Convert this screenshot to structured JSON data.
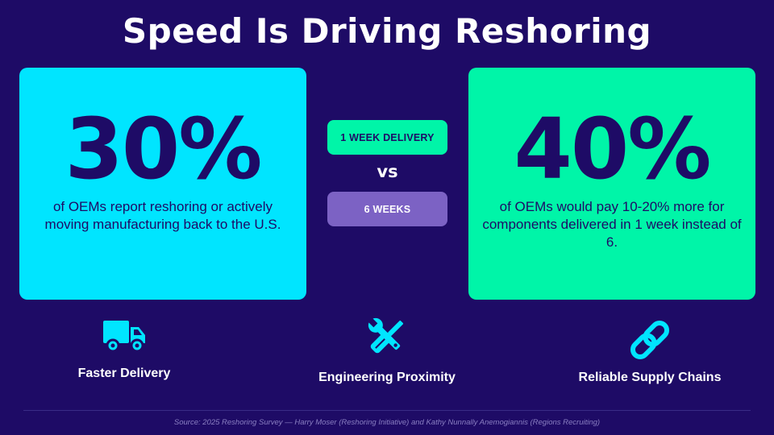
{
  "slide": {
    "title": "Speed Is Driving Reshoring"
  },
  "left_card": {
    "stat": "30%",
    "description": "of OEMs report reshoring or actively moving manufacturing back to the U.S."
  },
  "right_card": {
    "stat": "40%",
    "description": "of OEMs would pay 10-20% more for components delivered in 1 week instead of 6."
  },
  "comparison": {
    "option_a": "1 WEEK DELIVERY",
    "vs": "vs",
    "option_b": "6 WEEKS"
  },
  "features": [
    {
      "icon": "truck-icon",
      "label": "Faster Delivery"
    },
    {
      "icon": "tools-icon",
      "label": "Engineering Proximity"
    },
    {
      "icon": "link-icon",
      "label": "Reliable Supply Chains"
    }
  ],
  "footer": {
    "source": "Source: 2025 Reshoring Survey — Harry Moser (Reshoring Initiative) and Kathy Nunnally Anemogiannis (Regions Recruiting)"
  },
  "colors": {
    "background": "#1e0b66",
    "cyan": "#00e5ff",
    "green": "#00f5a8",
    "purple": "#7c62c4"
  }
}
